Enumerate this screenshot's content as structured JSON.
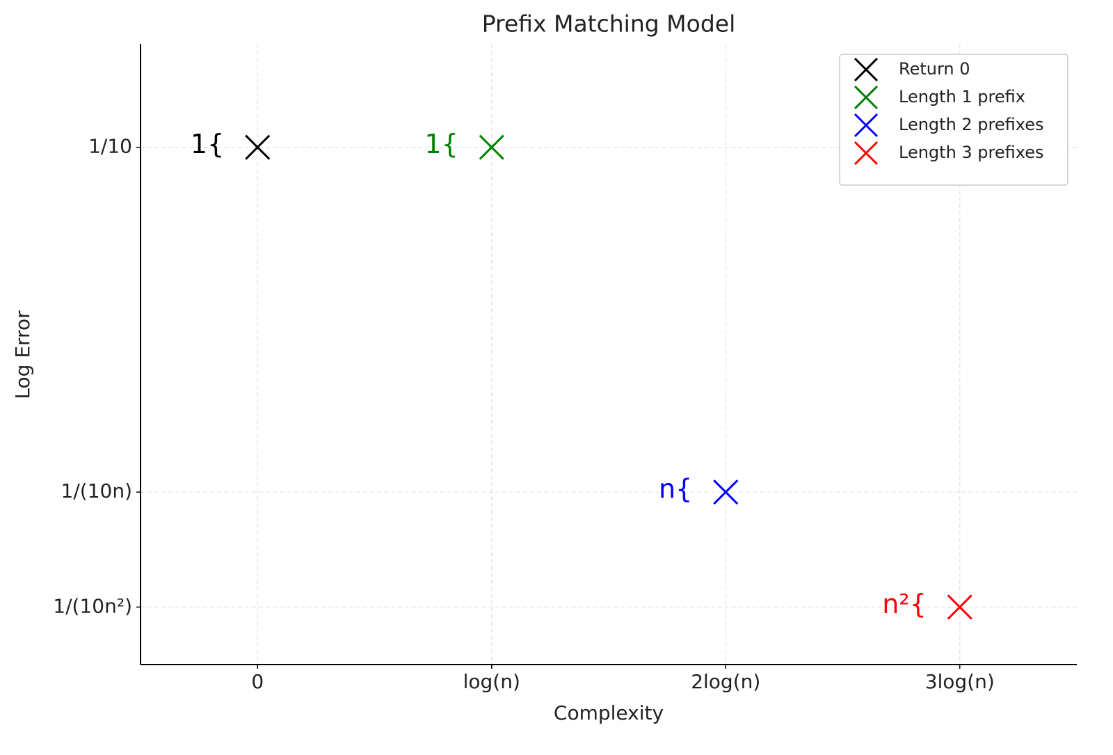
{
  "chart_data": {
    "type": "scatter",
    "title": "Prefix Matching Model",
    "x_label": "Complexity",
    "y_label": "Log Error",
    "xlim": [
      -0.5,
      3.5
    ],
    "xticks": [
      0,
      {
        "value": 1,
        "label": "log(n)"
      },
      {
        "value": 2,
        "label": "2log(n)"
      },
      {
        "value": 3,
        "label": "3log(n)"
      }
    ],
    "ylim": [
      -5.5,
      -0.1
    ],
    "yticks": [
      {
        "value": -1,
        "label": "1/10"
      },
      {
        "value": -4,
        "label": "1/(10n)"
      },
      {
        "value": -5,
        "label": "1/(10n²)"
      }
    ],
    "grid": true,
    "legend": "upper right",
    "series": [
      {
        "name": "Return 0",
        "color": "#000000",
        "x": [
          0
        ],
        "values": [
          -1
        ],
        "point_labels": [
          "1{"
        ]
      },
      {
        "name": "Length 1 prefix",
        "color": "#008000",
        "x": [
          1
        ],
        "values": [
          -1
        ],
        "point_labels": [
          "1{"
        ]
      },
      {
        "name": "Length 2 prefixes",
        "color": "#0000ff",
        "x": [
          2
        ],
        "values": [
          -4
        ],
        "point_labels": [
          "n{"
        ]
      },
      {
        "name": "Length 3 prefixes",
        "color": "#ff0000",
        "x": [
          3
        ],
        "values": [
          -5
        ],
        "point_labels": [
          "n²{"
        ]
      }
    ]
  }
}
